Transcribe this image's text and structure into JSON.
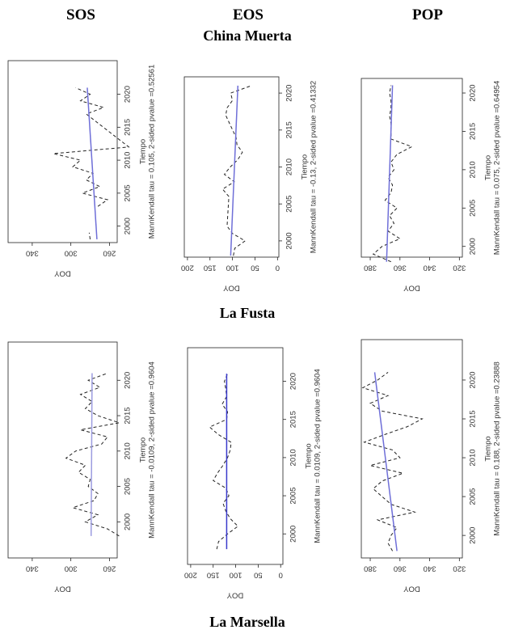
{
  "column_headers": [
    "SOS",
    "EOS",
    "POP"
  ],
  "site_labels": [
    "China Muerta",
    "La Fusta",
    "La Marsella"
  ],
  "chart_data": [
    {
      "type": "line",
      "xlabel": "Tiempo",
      "ylabel": "DOY",
      "subtitle": "MannKendall tau = 0.105, 2-sided pvalue =0.52561",
      "x": [
        1998,
        1999,
        2000,
        2003,
        2004,
        2005,
        2006,
        2007,
        2008,
        2009,
        2010,
        2011,
        2012,
        2017,
        2018,
        2019,
        2020,
        2021
      ],
      "series": [
        {
          "color": "#222222",
          "line_style": "dashed",
          "values": [
            280,
            281,
            null,
            272,
            262,
            288,
            270,
            284,
            277,
            298,
            290,
            318,
            240,
            284,
            266,
            290,
            280,
            295
          ]
        }
      ],
      "trend": {
        "x": [
          1998,
          2021
        ],
        "values": [
          273,
          283
        ],
        "color": "#6f6fd8"
      },
      "xlim": [
        1997.5,
        2025.1
      ],
      "xticks": [
        2000,
        2005,
        2010,
        2015,
        2020
      ],
      "ylim": [
        252,
        365
      ],
      "yticks": [
        260,
        300,
        340
      ]
    },
    {
      "type": "line",
      "xlabel": "Tiempo",
      "ylabel": "DOY",
      "subtitle": "MannKendall tau = -0.13, 2-sided pvalue =0.41332",
      "x": [
        1998,
        1999,
        2000,
        2001,
        2002,
        2006,
        2007,
        2008,
        2009,
        2010,
        2011,
        2012,
        2013,
        2014,
        2017,
        2018,
        2019,
        2020,
        2021
      ],
      "series": [
        {
          "color": "#222222",
          "line_style": "dashed",
          "values": [
            98,
            95,
            72,
            100,
            112,
            108,
            122,
            96,
            118,
            105,
            88,
            78,
            90,
            92,
            115,
            112,
            100,
            104,
            58
          ]
        }
      ],
      "trend": {
        "x": [
          1998,
          2021
        ],
        "values": [
          104,
          88
        ],
        "color": "#6f6fd8"
      },
      "xlim": [
        1997.8,
        2022.2
      ],
      "xticks": [
        2000,
        2005,
        2010,
        2015,
        2020
      ],
      "ylim": [
        -3,
        207
      ],
      "yticks": [
        0,
        50,
        100,
        150,
        200
      ]
    },
    {
      "type": "line",
      "xlabel": "Tiempo",
      "ylabel": "DOY",
      "subtitle": "MannKendall tau = 0.075, 2-sided pvalue =0.64954",
      "x": [
        1998,
        1999,
        2000,
        2001,
        2002,
        2003,
        2004,
        2005,
        2006,
        2007,
        2008,
        2009,
        2010,
        2011,
        2012,
        2013,
        2014,
        2015,
        2016,
        2017,
        2018,
        2019,
        2020,
        2021
      ],
      "series": [
        {
          "color": "#222222",
          "line_style": "dashed",
          "values": [
            366,
            378,
            372,
            360,
            368,
            364,
            367,
            362,
            370,
            366,
            365,
            368,
            364,
            366,
            362,
            352,
            366,
            366,
            366,
            367,
            366,
            366,
            367,
            366
          ]
        }
      ],
      "trend": {
        "x": [
          1998,
          2021
        ],
        "values": [
          369,
          365
        ],
        "color": "#6f6fd8"
      },
      "xlim": [
        1998.6,
        2021.9
      ],
      "xticks": [
        2000,
        2005,
        2010,
        2015,
        2020
      ],
      "ylim": [
        318,
        386
      ],
      "yticks": [
        320,
        340,
        360,
        380
      ]
    },
    {
      "type": "line",
      "xlabel": "Tiempo",
      "ylabel": "DOY",
      "subtitle": "MannKendall tau = -0.0109, 2-sided pvalue =0.9604",
      "x": [
        1998,
        1999,
        2000,
        2001,
        2002,
        2003,
        2004,
        2005,
        2006,
        2007,
        2008,
        2009,
        2010,
        2011,
        2012,
        2013,
        2014,
        2015,
        2016,
        2017,
        2018,
        2019,
        2020,
        2021
      ],
      "series": [
        {
          "color": "#222222",
          "line_style": "dashed",
          "values": [
            250,
            262,
            285,
            272,
            298,
            276,
            272,
            282,
            280,
            292,
            285,
            305,
            295,
            268,
            262,
            290,
            250,
            272,
            285,
            278,
            290,
            270,
            282,
            262
          ]
        }
      ],
      "trend": {
        "x": [
          1998,
          2021
        ],
        "values": [
          279,
          278
        ],
        "color": "#9c9ce0"
      },
      "xlim": [
        1994.9,
        2025.4
      ],
      "xticks": [
        2000,
        2005,
        2010,
        2015,
        2020
      ],
      "ylim": [
        252,
        365
      ],
      "yticks": [
        260,
        300,
        340
      ]
    },
    {
      "type": "line",
      "xlabel": "Tiempo",
      "ylabel": "DOY",
      "subtitle": "MannKendall tau = 0.0109, 2-sided pvalue =0.9604",
      "x": [
        1998,
        1999,
        2000,
        2001,
        2002,
        2003,
        2004,
        2005,
        2006,
        2007,
        2008,
        2009,
        2010,
        2011,
        2012,
        2013,
        2014,
        2015,
        2016,
        2017,
        2018,
        2019,
        2020,
        2021
      ],
      "series": [
        {
          "color": "#222222",
          "line_style": "dashed",
          "values": [
            142,
            138,
            118,
            95,
            112,
            122,
            128,
            115,
            122,
            150,
            140,
            128,
            118,
            112,
            110,
            138,
            158,
            120,
            118,
            130,
            120,
            122,
            125,
            118
          ]
        }
      ],
      "trend": {
        "x": [
          1998,
          2021
        ],
        "values": [
          120,
          120
        ],
        "color": "#3a3acc"
      },
      "xlim": [
        1996,
        2024.4
      ],
      "xticks": [
        2000,
        2005,
        2010,
        2015,
        2020
      ],
      "ylim": [
        -5,
        207
      ],
      "yticks": [
        0,
        50,
        100,
        150,
        200
      ]
    },
    {
      "type": "line",
      "xlabel": "Tiempo",
      "ylabel": "DOY",
      "subtitle": "MannKendall tau = 0.188, 2-sided pvalue =0.23888",
      "x": [
        1998,
        1999,
        2000,
        2001,
        2002,
        2003,
        2004,
        2005,
        2006,
        2007,
        2008,
        2009,
        2010,
        2011,
        2012,
        2013,
        2014,
        2015,
        2016,
        2017,
        2018,
        2019,
        2020,
        2021
      ],
      "series": [
        {
          "color": "#222222",
          "line_style": "dashed",
          "values": [
            365,
            368,
            366,
            362,
            375,
            350,
            366,
            372,
            378,
            372,
            358,
            380,
            360,
            365,
            384,
            370,
            355,
            345,
            372,
            380,
            368,
            385,
            375,
            368
          ]
        }
      ],
      "trend": {
        "x": [
          1998,
          2021
        ],
        "values": [
          362,
          377
        ],
        "color": "#6f6fd8"
      },
      "xlim": [
        1997.1,
        2025.2
      ],
      "xticks": [
        2000,
        2005,
        2010,
        2015,
        2020
      ],
      "ylim": [
        318,
        386
      ],
      "yticks": [
        320,
        340,
        360,
        380
      ]
    }
  ]
}
